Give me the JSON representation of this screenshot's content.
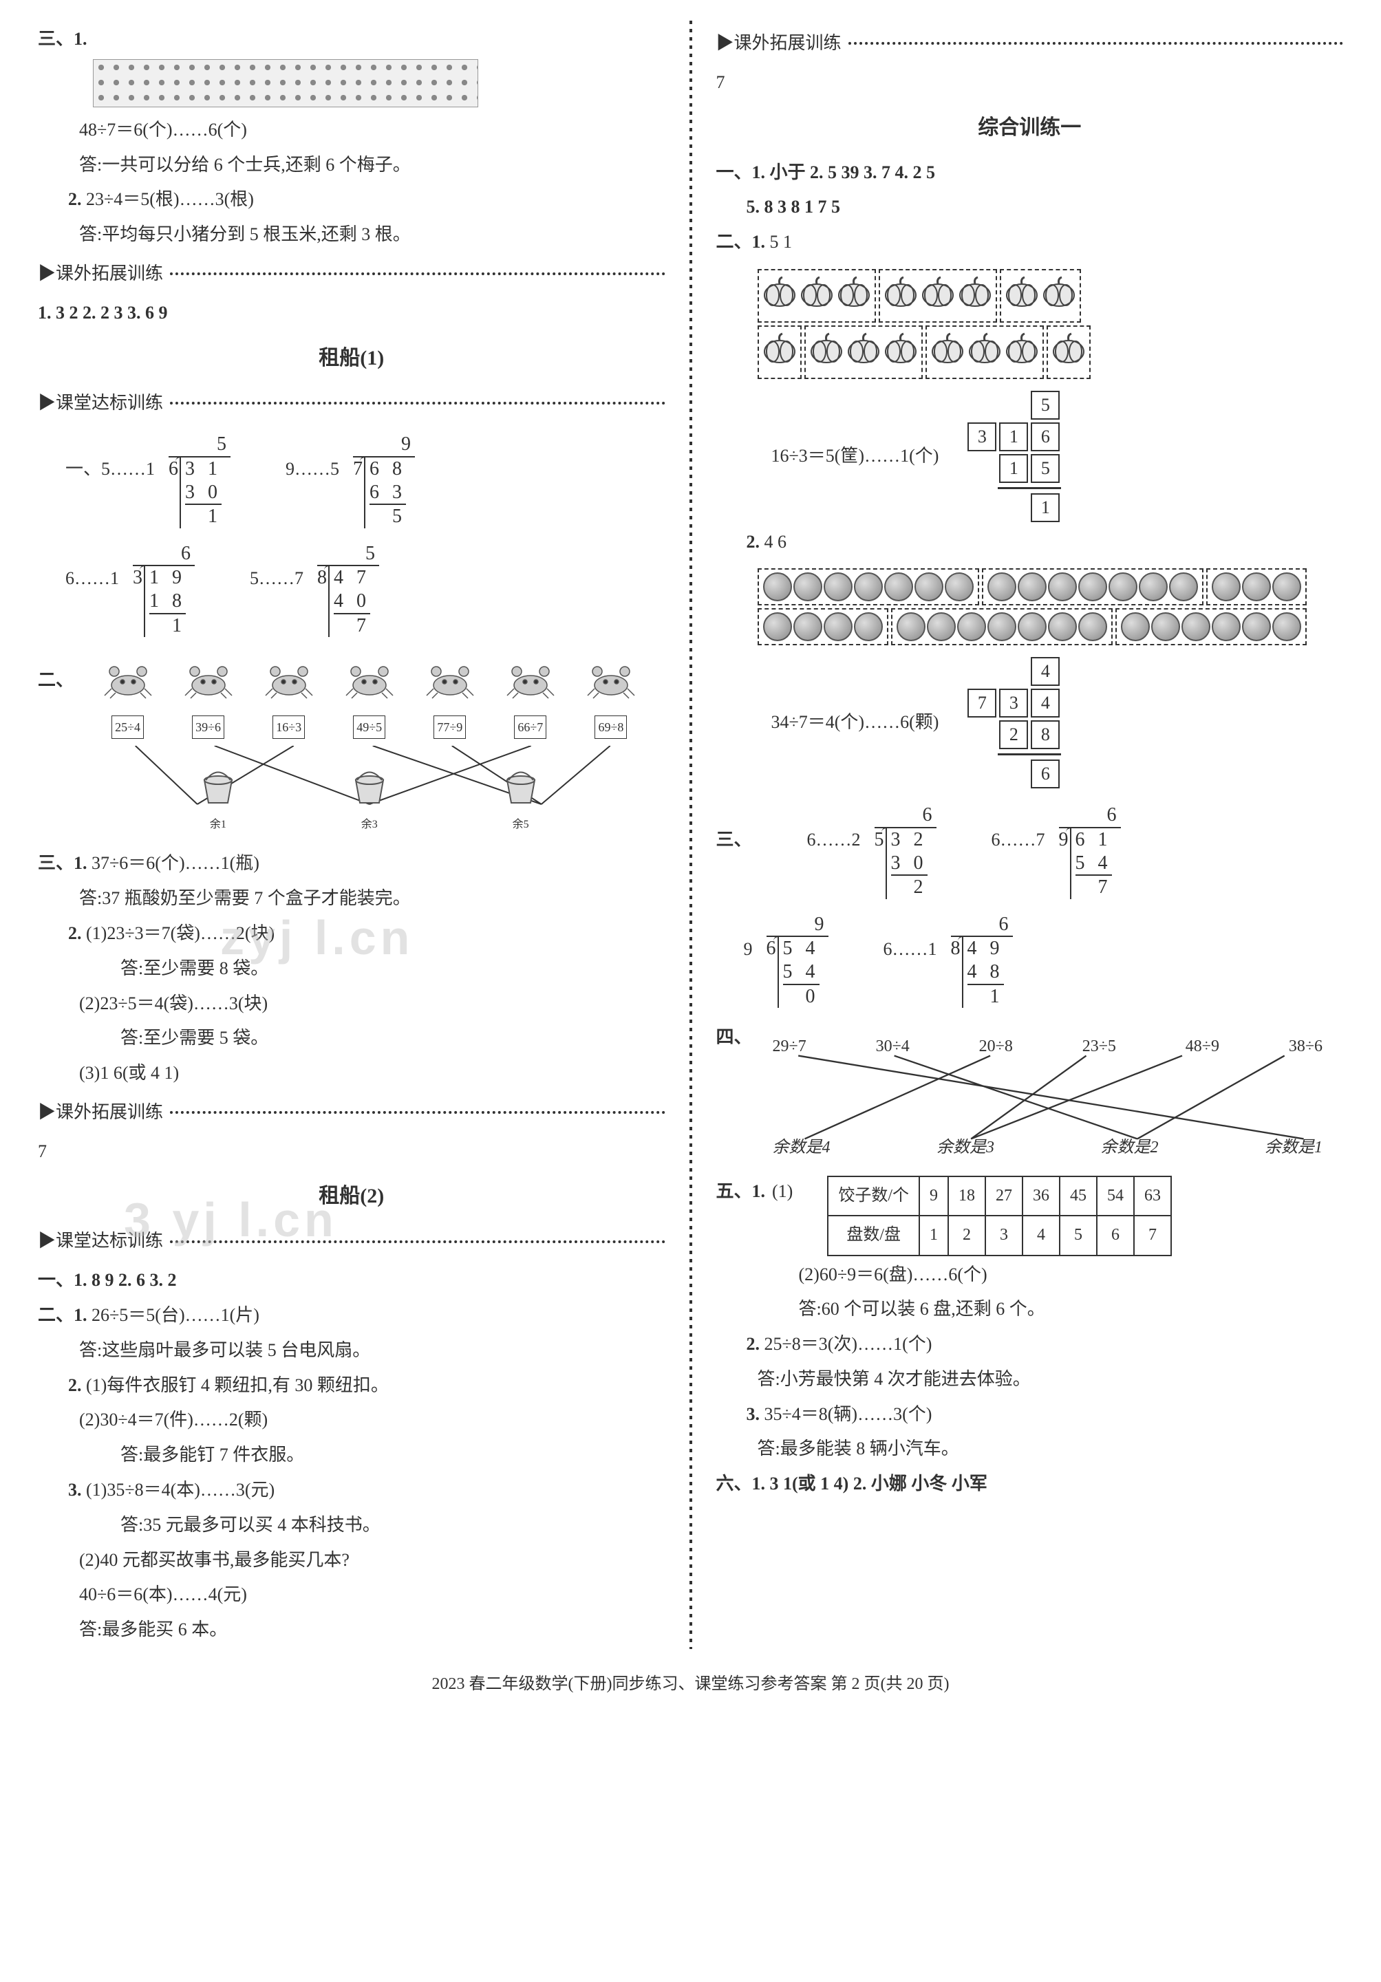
{
  "left": {
    "san": {
      "label": "三、1.",
      "eq1": "48÷7＝6(个)……6(个)",
      "ans1": "答:一共可以分给 6 个士兵,还剩 6 个梅子。",
      "label2": "2.",
      "eq2": "23÷4＝5(根)……3(根)",
      "ans2": "答:平均每只小猪分到 5 根玉米,还剩 3 根。"
    },
    "kwtz1": {
      "title": "▶课外拓展训练",
      "line1": "1.  3   2    2.  2   3    3.  6   9"
    },
    "zuchuan1_title": "租船(1)",
    "ktdb1": "▶课堂达标训练",
    "longdiv1": [
      {
        "label": "一、5……1",
        "divisor": "6",
        "dividend": "3 1",
        "quotient": "5",
        "sub": "3 0",
        "rem": "1"
      },
      {
        "label": "9……5",
        "divisor": "7",
        "dividend": "6 8",
        "quotient": "9",
        "sub": "6 3",
        "rem": "5"
      },
      {
        "label": "6……1",
        "divisor": "3",
        "dividend": "1 9",
        "quotient": "6",
        "sub": "1 8",
        "rem": "1"
      },
      {
        "label": "5……7",
        "divisor": "8",
        "dividend": "4 7",
        "quotient": "5",
        "sub": "4 0",
        "rem": "7"
      }
    ],
    "er_label": "二、",
    "crabs": [
      "25÷4",
      "39÷6",
      "16÷3",
      "49÷5",
      "77÷9",
      "66÷7",
      "69÷8"
    ],
    "buckets": [
      "余1",
      "余3",
      "余5"
    ],
    "san2": {
      "label": "三、1.",
      "eq1": "37÷6＝6(个)……1(瓶)",
      "ans1": "答:37 瓶酸奶至少需要 7 个盒子才能装完。",
      "p2_label": "2.",
      "p2_1": "(1)23÷3＝7(袋)……2(块)",
      "p2_1a": "答:至少需要 8 袋。",
      "p2_2": "(2)23÷5＝4(袋)……3(块)",
      "p2_2a": "答:至少需要 5 袋。",
      "p2_3": "(3)1   6(或 4   1)"
    },
    "kwtz2": {
      "title": "▶课外拓展训练",
      "val": "7"
    },
    "zuchuan2_title": "租船(2)",
    "ktdb2": "▶课堂达标训练",
    "yi2": "一、1.  8   9    2.  6   3.  2",
    "er2": {
      "label": "二、1.",
      "eq1": "26÷5＝5(台)……1(片)",
      "ans1": "答:这些扇叶最多可以装 5 台电风扇。",
      "p2_label": "2.",
      "p2_1": "(1)每件衣服钉 4 颗纽扣,有 30 颗纽扣。",
      "p2_2": "(2)30÷4＝7(件)……2(颗)",
      "p2_2a": "答:最多能钉 7 件衣服。",
      "p3_label": "3.",
      "p3_1": "(1)35÷8＝4(本)……3(元)",
      "p3_1a": "答:35 元最多可以买 4 本科技书。",
      "p3_2": "(2)40 元都买故事书,最多能买几本?",
      "p3_3": "40÷6＝6(本)……4(元)",
      "p3_3a": "答:最多能买 6 本。"
    }
  },
  "right": {
    "kwtz": {
      "title": "▶课外拓展训练",
      "val": "7"
    },
    "zhxl_title": "综合训练一",
    "yi": "一、1. 小于    2.  5   39    3.  7    4.  2   5",
    "yi_line2": "5.  8   3   8        1   7   5",
    "er": {
      "label": "二、1.",
      "val1": "5   1",
      "eq1": "16÷3＝5(筐)……1(个)",
      "box1": {
        "q": "5",
        "d": "3",
        "dv": [
          "1",
          "6"
        ],
        "s": [
          "1",
          "5"
        ],
        "r": "1"
      },
      "label2": "2.",
      "val2": "4   6",
      "eq2": "34÷7＝4(个)……6(颗)",
      "box2": {
        "q": "4",
        "d": "7",
        "dv": [
          "3",
          "4"
        ],
        "s": [
          "2",
          "8"
        ],
        "r": "6"
      }
    },
    "san": {
      "label": "三、",
      "items": [
        {
          "label": "6……2",
          "divisor": "5",
          "dividend": "3 2",
          "quotient": "6",
          "sub": "3 0",
          "rem": "2"
        },
        {
          "label": "6……7",
          "divisor": "9",
          "dividend": "6 1",
          "quotient": "6",
          "sub": "5 4",
          "rem": "7"
        },
        {
          "label": "9",
          "divisor": "6",
          "dividend": "5 4",
          "quotient": "9",
          "sub": "5 4",
          "rem": "0"
        },
        {
          "label": "6……1",
          "divisor": "8",
          "dividend": "4 9",
          "quotient": "6",
          "sub": "4 8",
          "rem": "1"
        }
      ]
    },
    "si": {
      "label": "四、",
      "top": [
        "29÷7",
        "30÷4",
        "20÷8",
        "23÷5",
        "48÷9",
        "38÷6"
      ],
      "bot": [
        "余数是4",
        "余数是3",
        "余数是2",
        "余数是1"
      ]
    },
    "wu": {
      "label": "五、1.",
      "sub1": "(1)",
      "h1": "饺子数/个",
      "h2": "盘数/盘",
      "row1": [
        "9",
        "18",
        "27",
        "36",
        "45",
        "54",
        "63"
      ],
      "row2": [
        "1",
        "2",
        "3",
        "4",
        "5",
        "6",
        "7"
      ],
      "p2": "(2)60÷9＝6(盘)……6(个)",
      "p2a": "答:60 个可以装 6 盘,还剩 6 个。",
      "p2_label": "2.",
      "eq2": "25÷8＝3(次)……1(个)",
      "ans2": "答:小芳最快第 4 次才能进去体验。",
      "p3_label": "3.",
      "eq3": "35÷4＝8(辆)……3(个)",
      "ans3": "答:最多能装 8 辆小汽车。"
    },
    "liu": "六、1.  3   1(或 1   4)    2.  小娜   小冬   小军"
  },
  "footer": "2023 春二年级数学(下册)同步练习、课堂练习参考答案   第  2  页(共 20 页)"
}
